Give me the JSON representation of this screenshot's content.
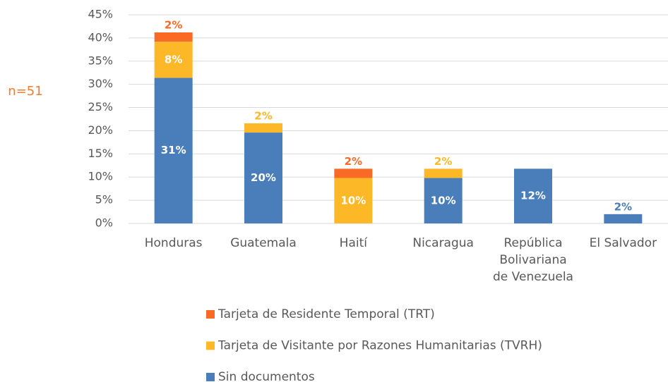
{
  "chart_data": {
    "type": "stacked_bar",
    "annotation": "n=51",
    "categories": [
      "Honduras",
      "Guatemala",
      "Haití",
      "Nicaragua",
      "República Bolivariana de Venezuela",
      "El Salvador"
    ],
    "series": [
      {
        "name": "Sin documentos",
        "color": "#4a7ebb",
        "values": [
          31.4,
          19.6,
          null,
          9.8,
          11.8,
          2.0
        ],
        "value_labels": [
          "31%",
          "20%",
          null,
          "10%",
          "12%",
          "2%"
        ]
      },
      {
        "name": "Tarjeta de Visitante por Razones Humanitarias (TVRH)",
        "color": "#fdb827",
        "values": [
          7.8,
          2.0,
          9.8,
          2.0,
          null,
          null
        ],
        "value_labels": [
          "8%",
          "2%",
          "10%",
          "2%",
          null,
          null
        ]
      },
      {
        "name": "Tarjeta de Residente Temporal (TRT)",
        "color": "#f96a25",
        "values": [
          2.0,
          null,
          2.0,
          null,
          null,
          null
        ],
        "value_labels": [
          "2%",
          null,
          "2%",
          null,
          null,
          null
        ]
      }
    ],
    "ylim": [
      0,
      45
    ],
    "yticks": [
      {
        "value": 0,
        "label": "0%"
      },
      {
        "value": 5,
        "label": "5%"
      },
      {
        "value": 10,
        "label": "10%"
      },
      {
        "value": 15,
        "label": "15%"
      },
      {
        "value": 20,
        "label": "20%"
      },
      {
        "value": 25,
        "label": "25%"
      },
      {
        "value": 30,
        "label": "30%"
      },
      {
        "value": 35,
        "label": "35%"
      },
      {
        "value": 40,
        "label": "40%"
      },
      {
        "value": 45,
        "label": "45%"
      }
    ],
    "grid": true,
    "legend": "bottom"
  }
}
